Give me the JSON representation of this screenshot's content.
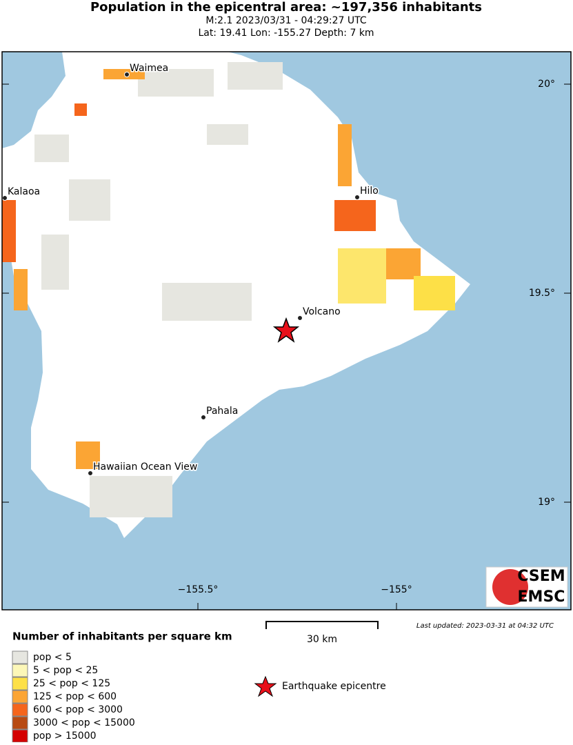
{
  "header": {
    "title": "Population in the epicentral area: ~197,356 inhabitants",
    "line1": "M:2.1 2023/03/31 - 04:29:27 UTC",
    "line2": "Lat: 19.41 Lon: -155.27 Depth: 7 km"
  },
  "map": {
    "cities": [
      {
        "label": "Waimea"
      },
      {
        "label": "Kalaoa"
      },
      {
        "label": "Hilo"
      },
      {
        "label": "Volcano"
      },
      {
        "label": "Pahala"
      },
      {
        "label": "Hawaiian Ocean View"
      }
    ],
    "lat_ticks": [
      {
        "value": 20,
        "label": "20°"
      },
      {
        "value": 19.5,
        "label": "19.5°"
      },
      {
        "value": 19,
        "label": "19°"
      }
    ],
    "lon_ticks": [
      {
        "value": -155.5,
        "label": "−155.5°"
      },
      {
        "value": -155,
        "label": "−155°"
      }
    ],
    "sea_color": "#a0c8e0",
    "land_color": "#ffffff"
  },
  "logo": {
    "top": "CSEM",
    "bottom": "EMSC"
  },
  "updated": "Last updated: 2023-03-31 at 04:32 UTC",
  "scale": {
    "label": "30 km"
  },
  "epicentre": {
    "label": "Earthquake epicentre",
    "color": "#e8101a"
  },
  "legend": {
    "title": "Number of inhabitants per square km",
    "items": [
      {
        "label": "pop < 5",
        "color": "#e6e6e0"
      },
      {
        "label": "5 < pop < 25",
        "color": "#fcf7b8"
      },
      {
        "label": "25 < pop < 125",
        "color": "#fde047"
      },
      {
        "label": "125 < pop < 600",
        "color": "#fba534"
      },
      {
        "label": "600 < pop < 3000",
        "color": "#f5651c"
      },
      {
        "label": "3000 < pop < 15000",
        "color": "#b84a12"
      },
      {
        "label": "pop > 15000",
        "color": "#d40000"
      }
    ]
  }
}
